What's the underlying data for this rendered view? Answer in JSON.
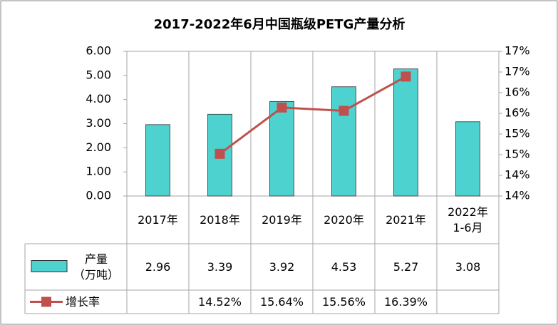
{
  "chart_data": {
    "type": "bar_line_table",
    "title": "2017-2022年6月中国瓶级PETG产量分析",
    "categories": [
      "2017年",
      "2018年",
      "2019年",
      "2020年",
      "2021年",
      "2022年\n1-6月"
    ],
    "series": [
      {
        "name": "产量\n（万吨）",
        "type": "bar",
        "color": "#4dd2cf",
        "values": [
          2.96,
          3.39,
          3.92,
          4.53,
          5.27,
          3.08
        ]
      },
      {
        "name": "增长率",
        "type": "line",
        "axis": "y2",
        "color": "#c0504d",
        "values": [
          null,
          14.52,
          15.64,
          15.56,
          16.39,
          null
        ],
        "value_labels": [
          null,
          "14.52%",
          "15.64%",
          "15.56%",
          "16.39%",
          null
        ]
      }
    ],
    "ylim": [
      0,
      6
    ],
    "yticks": [
      {
        "value": 0,
        "label": "0.00"
      },
      {
        "value": 1,
        "label": "1.00"
      },
      {
        "value": 2,
        "label": "2.00"
      },
      {
        "value": 3,
        "label": "3.00"
      },
      {
        "value": 4,
        "label": "4.00"
      },
      {
        "value": 5,
        "label": "5.00"
      },
      {
        "value": 6,
        "label": "6.00"
      }
    ],
    "y2lim": [
      13.5,
      17
    ],
    "y2ticks": [
      {
        "value": 13.5,
        "label": "14%"
      },
      {
        "value": 14,
        "label": "14%"
      },
      {
        "value": 14.5,
        "label": "15%"
      },
      {
        "value": 15,
        "label": "15%"
      },
      {
        "value": 15.5,
        "label": "16%"
      },
      {
        "value": 16,
        "label": "16%"
      },
      {
        "value": 16.5,
        "label": "17%"
      },
      {
        "value": 17,
        "label": "17%"
      }
    ],
    "grid": false
  }
}
